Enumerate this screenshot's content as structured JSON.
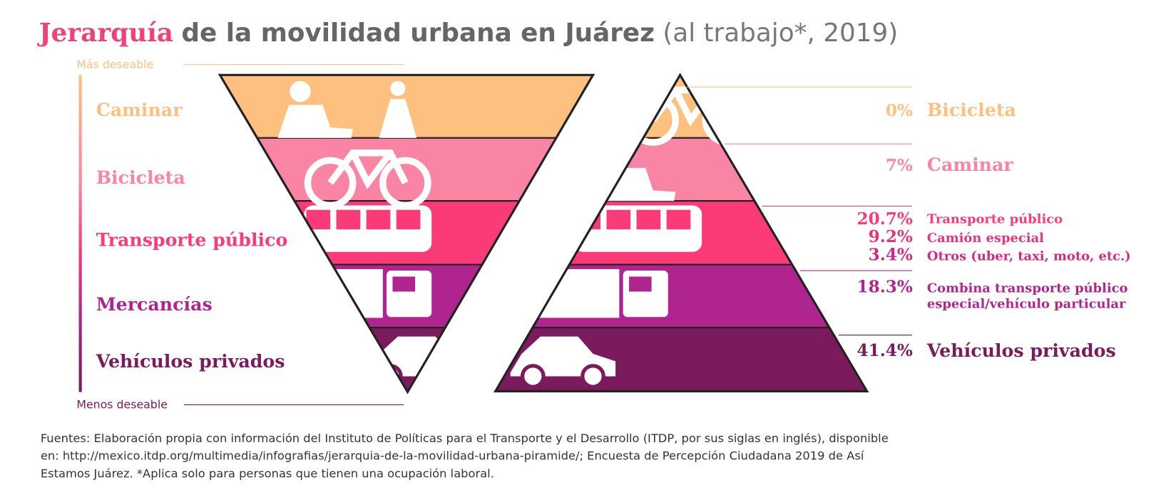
{
  "title": {
    "highlight": "Jerarquía",
    "main": "de la movilidad urbana en Juárez",
    "note": "(al trabajo*, 2019)"
  },
  "left_pyramid": {
    "top_label": "Más deseable",
    "bottom_label": "Menos deseable",
    "levels": [
      "Caminar",
      "Bicicleta",
      "Transporte público",
      "Mercancías",
      "Vehículos privados"
    ]
  },
  "right_pyramid": {
    "rows": [
      {
        "percent": "0%",
        "label": [
          "Bicicleta"
        ]
      },
      {
        "percent": "7%",
        "label": [
          "Caminar"
        ]
      },
      {
        "percent": "20.7%",
        "label": [
          "Transporte público"
        ]
      },
      {
        "percent": "9.2%",
        "label": [
          "Camión especial"
        ]
      },
      {
        "percent": "3.4%",
        "label": [
          "Otros (uber, taxi, moto, etc.)"
        ]
      },
      {
        "percent": "18.3%",
        "label": [
          "Combina transporte público",
          "especial/vehículo particular"
        ]
      },
      {
        "percent": "41.4%",
        "label": [
          "Vehículos privados"
        ]
      }
    ]
  },
  "footnote": [
    "Fuentes: Elaboración propia con información del Instituto de Políticas para el Transporte y el Desarrollo (ITDP, por sus siglas en inglés), disponible",
    "en: http://mexico.itdp.org/multimedia/infografias/jerarquia-de-la-movilidad-urbana-piramide/;  Encuesta de Percepción Ciudadana 2019 de Así",
    "Estamos Juárez. *Aplica solo para personas que tienen una ocupación laboral."
  ]
}
